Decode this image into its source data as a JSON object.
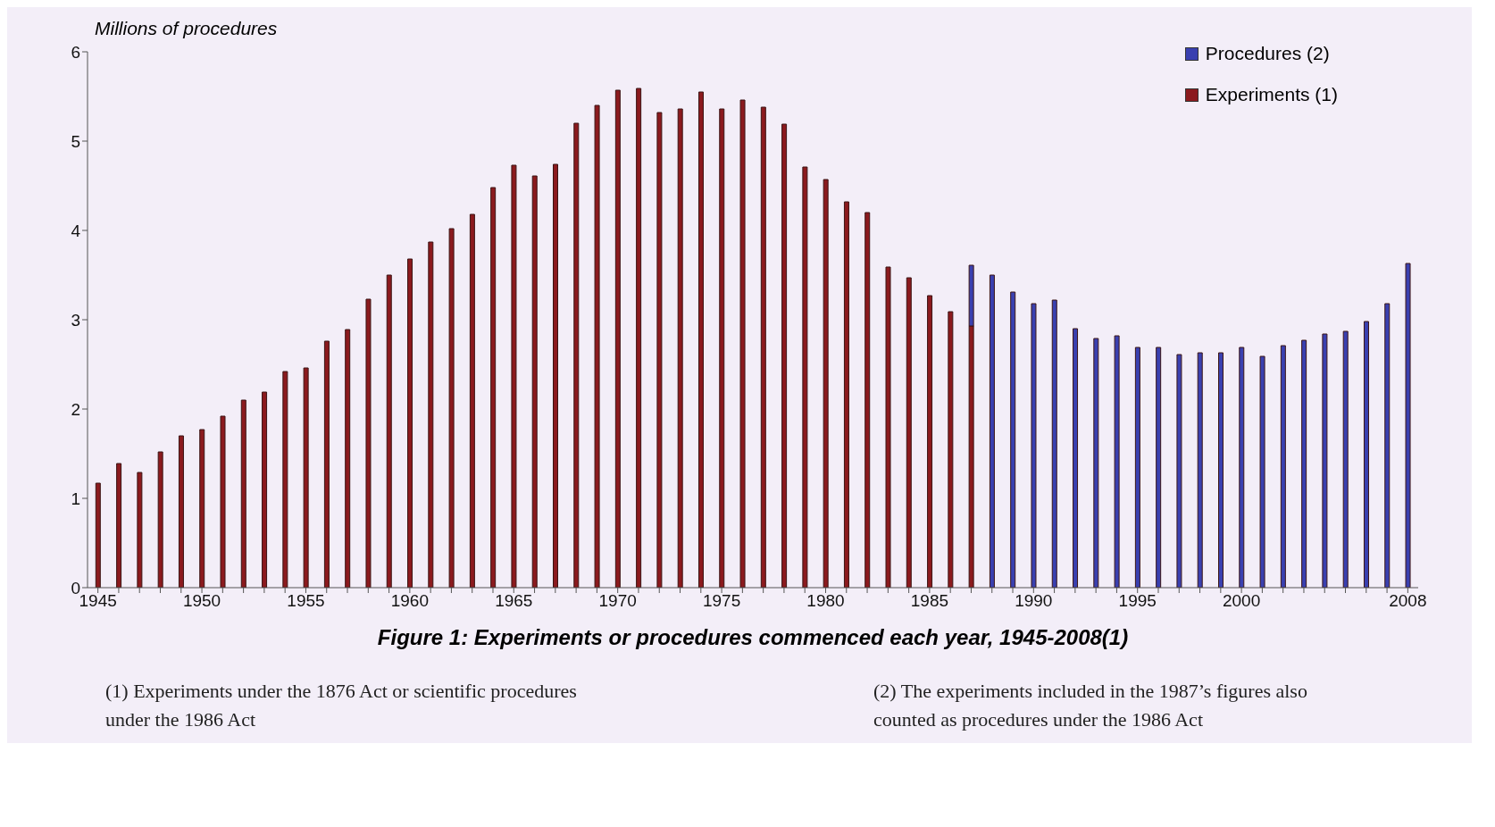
{
  "chart_data": {
    "type": "bar",
    "title": "Figure 1:  Experiments or procedures commenced each year, 1945-2008(1)",
    "ylabel": "Millions of procedures",
    "categories": [
      "1945",
      null,
      null,
      null,
      null,
      "1950",
      null,
      null,
      null,
      null,
      "1955",
      null,
      null,
      null,
      null,
      "1960",
      null,
      null,
      null,
      null,
      "1965",
      null,
      null,
      null,
      null,
      "1970",
      null,
      null,
      null,
      null,
      "1975",
      null,
      null,
      null,
      null,
      "1980",
      null,
      null,
      null,
      null,
      "1985",
      null,
      null,
      null,
      null,
      "1990",
      null,
      null,
      null,
      null,
      "1995",
      null,
      null,
      null,
      null,
      "2000",
      null,
      null,
      null,
      null,
      null,
      null,
      null,
      "2008"
    ],
    "series": [
      {
        "name": "Experiments (1)",
        "color": "#8b1a1e",
        "values": [
          1.17,
          1.39,
          1.29,
          1.52,
          1.7,
          1.77,
          1.92,
          2.1,
          2.19,
          2.42,
          2.46,
          2.76,
          2.89,
          3.23,
          3.5,
          3.68,
          3.87,
          4.02,
          4.18,
          4.48,
          4.73,
          4.61,
          4.74,
          5.2,
          5.4,
          5.57,
          5.59,
          5.32,
          5.36,
          5.55,
          5.36,
          5.46,
          5.38,
          5.19,
          4.71,
          4.57,
          4.32,
          4.2,
          3.59,
          3.47,
          3.27,
          3.09,
          2.93,
          null,
          null,
          null,
          null,
          null,
          null,
          null,
          null,
          null,
          null,
          null,
          null,
          null,
          null,
          null,
          null,
          null,
          null,
          null,
          null,
          null
        ]
      },
      {
        "name": "Procedures (2)",
        "color": "#3a40b0",
        "values": [
          null,
          null,
          null,
          null,
          null,
          null,
          null,
          null,
          null,
          null,
          null,
          null,
          null,
          null,
          null,
          null,
          null,
          null,
          null,
          null,
          null,
          null,
          null,
          null,
          null,
          null,
          null,
          null,
          null,
          null,
          null,
          null,
          null,
          null,
          null,
          null,
          null,
          null,
          null,
          null,
          null,
          null,
          0.68,
          3.5,
          3.31,
          3.18,
          3.22,
          2.9,
          2.79,
          2.82,
          2.69,
          2.69,
          2.61,
          2.63,
          2.63,
          2.69,
          2.59,
          2.71,
          2.77,
          2.84,
          2.87,
          2.98,
          3.18,
          3.63
        ]
      }
    ],
    "stacked": true,
    "ylim": [
      0,
      6
    ],
    "yticks": [
      0,
      1,
      2,
      3,
      4,
      5,
      6
    ],
    "grid": false,
    "legend": "top right",
    "annotations": [
      "(1) Experiments under the 1876 Act or scientific procedures under the 1986 Act",
      "(2) The experiments included in the 1987’s figures also counted as procedures under the 1986 Act"
    ]
  }
}
